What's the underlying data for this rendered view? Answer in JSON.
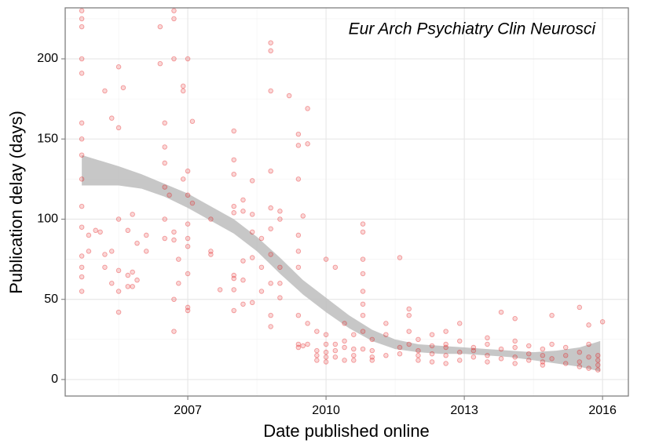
{
  "chart_data": {
    "type": "scatter",
    "annotation": "Eur Arch Psychiatry Clin Neurosci",
    "x_label": "Date published online",
    "y_label": "Publication delay (days)",
    "xlim": [
      2004.34,
      2016.56
    ],
    "ylim": [
      -10.3,
      231.8
    ],
    "xticks": [
      2007,
      2010,
      2013,
      2016
    ],
    "yticks": [
      0,
      50,
      100,
      150,
      200
    ],
    "minor_xticks": [
      2005.5,
      2008.5,
      2011.5,
      2014.5
    ],
    "minor_yticks": [
      25,
      75,
      125,
      175,
      225
    ],
    "grid": true,
    "series": [
      {
        "color": "#e41a1c",
        "x": [
          2004.7,
          2004.7,
          2004.7,
          2004.7,
          2004.7,
          2004.7,
          2004.7,
          2004.7,
          2004.7,
          2004.7,
          2004.7,
          2004.7,
          2004.7,
          2004.7,
          2004.7,
          2004.85,
          2004.85,
          2005.0,
          2005.1,
          2005.2,
          2005.2,
          2005.2,
          2005.35,
          2005.35,
          2005.35,
          2005.5,
          2005.5,
          2005.5,
          2005.5,
          2005.5,
          2005.5,
          2005.6,
          2005.7,
          2005.7,
          2005.7,
          2005.8,
          2005.8,
          2005.8,
          2005.9,
          2005.9,
          2006.1,
          2006.1,
          2006.4,
          2006.4,
          2006.5,
          2006.5,
          2006.5,
          2006.5,
          2006.5,
          2006.5,
          2006.6,
          2006.7,
          2006.7,
          2006.7,
          2006.7,
          2006.7,
          2006.7,
          2006.7,
          2006.8,
          2006.8,
          2006.9,
          2006.9,
          2006.9,
          2007.0,
          2007.0,
          2007.0,
          2007.0,
          2007.0,
          2007.0,
          2007.0,
          2007.0,
          2007.0,
          2007.1,
          2007.1,
          2007.5,
          2007.5,
          2007.5,
          2007.7,
          2008.0,
          2008.0,
          2008.0,
          2008.0,
          2008.0,
          2008.0,
          2008.0,
          2008.0,
          2008.0,
          2008.2,
          2008.2,
          2008.2,
          2008.2,
          2008.2,
          2008.4,
          2008.4,
          2008.4,
          2008.4,
          2008.4,
          2008.6,
          2008.6,
          2008.6,
          2008.8,
          2008.8,
          2008.8,
          2008.8,
          2008.8,
          2008.8,
          2008.8,
          2008.8,
          2008.8,
          2008.8,
          2009.0,
          2009.0,
          2009.0,
          2009.0,
          2009.0,
          2009.2,
          2009.4,
          2009.4,
          2009.4,
          2009.4,
          2009.4,
          2009.4,
          2009.4,
          2009.4,
          2009.4,
          2009.5,
          2009.5,
          2009.6,
          2009.6,
          2009.6,
          2009.6,
          2009.8,
          2009.8,
          2009.8,
          2009.8,
          2010.0,
          2010.0,
          2010.0,
          2010.0,
          2010.0,
          2010.0,
          2010.2,
          2010.2,
          2010.2,
          2010.2,
          2010.4,
          2010.4,
          2010.4,
          2010.4,
          2010.6,
          2010.6,
          2010.6,
          2010.6,
          2010.8,
          2010.8,
          2010.8,
          2010.8,
          2010.8,
          2010.8,
          2010.8,
          2010.8,
          2010.8,
          2011.0,
          2011.0,
          2011.0,
          2011.0,
          2011.3,
          2011.3,
          2011.3,
          2011.6,
          2011.6,
          2011.6,
          2011.8,
          2011.8,
          2011.8,
          2011.8,
          2012.0,
          2012.0,
          2012.0,
          2012.0,
          2012.3,
          2012.3,
          2012.3,
          2012.3,
          2012.6,
          2012.6,
          2012.6,
          2012.6,
          2012.6,
          2012.9,
          2012.9,
          2012.9,
          2012.9,
          2013.2,
          2013.2,
          2013.2,
          2013.5,
          2013.5,
          2013.5,
          2013.5,
          2013.8,
          2013.8,
          2013.8,
          2014.1,
          2014.1,
          2014.1,
          2014.1,
          2014.1,
          2014.4,
          2014.4,
          2014.4,
          2014.7,
          2014.7,
          2014.7,
          2014.7,
          2014.9,
          2014.9,
          2014.9,
          2015.2,
          2015.2,
          2015.2,
          2015.5,
          2015.5,
          2015.5,
          2015.5,
          2015.7,
          2015.7,
          2015.7,
          2015.7,
          2015.9,
          2015.9,
          2015.9,
          2015.9,
          2016.0
        ],
        "values": [
          225,
          230,
          220,
          200,
          191,
          160,
          150,
          140,
          125,
          108,
          95,
          77,
          70,
          64,
          55,
          80,
          90,
          93,
          92,
          180,
          78,
          70,
          163,
          80,
          60,
          100,
          55,
          42,
          157,
          195,
          68,
          182,
          58,
          65,
          93,
          103,
          58,
          67,
          85,
          62,
          80,
          90,
          220,
          197,
          160,
          145,
          135,
          120,
          100,
          88,
          115,
          230,
          225,
          200,
          50,
          30,
          92,
          87,
          75,
          60,
          183,
          180,
          125,
          200,
          130,
          45,
          43,
          115,
          97,
          88,
          83,
          66,
          161,
          110,
          80,
          78,
          100,
          56,
          155,
          137,
          128,
          108,
          104,
          63,
          65,
          56,
          43,
          112,
          105,
          74,
          62,
          47,
          124,
          103,
          92,
          76,
          48,
          88,
          70,
          55,
          210,
          205,
          180,
          130,
          107,
          94,
          78,
          60,
          40,
          33,
          105,
          100,
          70,
          60,
          51,
          177,
          153,
          146,
          125,
          90,
          80,
          70,
          40,
          22,
          20,
          102,
          21,
          169,
          147,
          35,
          22,
          30,
          18,
          12,
          15,
          75,
          28,
          22,
          17,
          14,
          11,
          70,
          18,
          14,
          22,
          35,
          24,
          12,
          20,
          28,
          19,
          15,
          12,
          97,
          92,
          75,
          66,
          55,
          47,
          40,
          30,
          19,
          18,
          12,
          14,
          25,
          35,
          28,
          15,
          76,
          20,
          16,
          44,
          40,
          30,
          22,
          18,
          15,
          12,
          25,
          28,
          16,
          11,
          21,
          30,
          22,
          15,
          10,
          20,
          24,
          17,
          12,
          35,
          20,
          14,
          18,
          26,
          15,
          11,
          22,
          42,
          19,
          13,
          38,
          20,
          14,
          10,
          24,
          16,
          12,
          21,
          15,
          9,
          11,
          19,
          40,
          22,
          13,
          20,
          15,
          10,
          45,
          17,
          11,
          8,
          34,
          22,
          14,
          7,
          15,
          12,
          6,
          9,
          36
        ]
      }
    ],
    "smooth": {
      "color": "#bdbdbd",
      "x": [
        2004.7,
        2005.5,
        2006.0,
        2006.5,
        2007.0,
        2007.5,
        2008.0,
        2008.5,
        2009.0,
        2009.5,
        2010.0,
        2010.5,
        2011.0,
        2011.5,
        2012.0,
        2012.5,
        2013.0,
        2013.5,
        2014.0,
        2014.5,
        2015.0,
        2015.5,
        2015.95
      ],
      "lower": [
        121,
        121,
        119,
        114,
        107,
        99,
        91,
        80,
        66,
        53,
        42,
        32,
        24,
        19,
        17,
        16,
        16,
        15,
        14,
        12,
        10,
        8,
        5
      ],
      "upper": [
        140,
        133,
        128,
        122,
        116,
        108,
        100,
        89,
        76,
        62,
        51,
        40,
        31,
        25,
        22,
        21,
        20,
        19,
        18,
        17,
        18,
        20,
        24
      ]
    }
  }
}
